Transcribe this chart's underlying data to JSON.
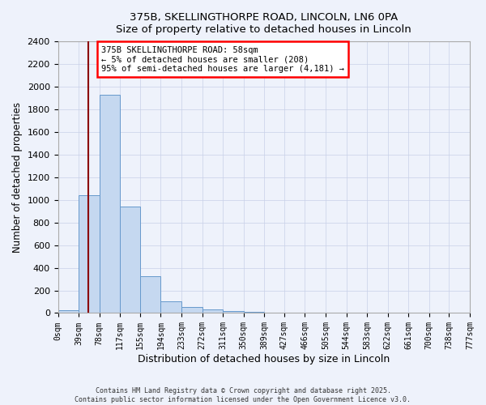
{
  "title_line1": "375B, SKELLINGTHORPE ROAD, LINCOLN, LN6 0PA",
  "title_line2": "Size of property relative to detached houses in Lincoln",
  "xlabel": "Distribution of detached houses by size in Lincoln",
  "ylabel": "Number of detached properties",
  "background_color": "#eef2fb",
  "bar_color": "#c5d8f0",
  "bar_edge_color": "#6699cc",
  "bin_edges": [
    0,
    39,
    78,
    117,
    155,
    194,
    233,
    272,
    311,
    350,
    389,
    427,
    466,
    505,
    544,
    583,
    622,
    661,
    700,
    738,
    777
  ],
  "bin_labels": [
    "0sqm",
    "39sqm",
    "78sqm",
    "117sqm",
    "155sqm",
    "194sqm",
    "233sqm",
    "272sqm",
    "311sqm",
    "350sqm",
    "389sqm",
    "427sqm",
    "466sqm",
    "505sqm",
    "544sqm",
    "583sqm",
    "622sqm",
    "661sqm",
    "700sqm",
    "738sqm",
    "777sqm"
  ],
  "bar_heights": [
    25,
    1040,
    1930,
    940,
    325,
    105,
    55,
    30,
    15,
    10,
    5,
    0,
    0,
    0,
    0,
    0,
    0,
    0,
    0,
    0
  ],
  "ylim": [
    0,
    2400
  ],
  "yticks": [
    0,
    200,
    400,
    600,
    800,
    1000,
    1200,
    1400,
    1600,
    1800,
    2000,
    2200,
    2400
  ],
  "red_line_x": 58,
  "annotation_title": "375B SKELLINGTHORPE ROAD: 58sqm",
  "annotation_line1": "← 5% of detached houses are smaller (208)",
  "annotation_line2": "95% of semi-detached houses are larger (4,181) →",
  "footer_line1": "Contains HM Land Registry data © Crown copyright and database right 2025.",
  "footer_line2": "Contains public sector information licensed under the Open Government Licence v3.0.",
  "grid_color": "#c8d0e8"
}
